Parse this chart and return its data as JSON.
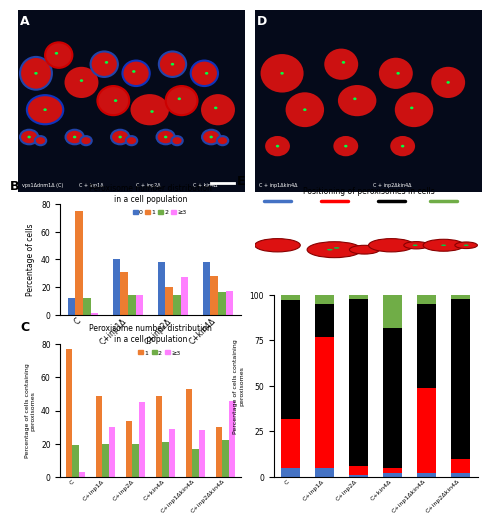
{
  "panel_B": {
    "title": "Peroxisome number distribution\nin a cell population",
    "categories": [
      "C",
      "C+inp1Δ",
      "C+inp2Δ",
      "C+kin4Δ"
    ],
    "legend_labels": [
      "0",
      "1",
      "2",
      "≥3"
    ],
    "colors": [
      "#4472C4",
      "#ED7D31",
      "#70AD47",
      "#FF80FF"
    ],
    "data": {
      "0": [
        12,
        40,
        38,
        38
      ],
      "1": [
        75,
        31,
        20,
        28
      ],
      "2": [
        12,
        14,
        14,
        16
      ],
      "ge3": [
        1,
        14,
        27,
        17
      ]
    },
    "ylabel": "Percentage of cells",
    "ylim": [
      0,
      80
    ],
    "yticks": [
      0,
      20,
      40,
      60,
      80
    ]
  },
  "panel_C": {
    "title": "Peroxisome number distribution\nin a cell population",
    "categories": [
      "C",
      "C+inp1Δ",
      "C+inp2Δ",
      "C+kin4Δ",
      "C+inp1Δkin4Δ",
      "C+inp2Δkin4Δ"
    ],
    "legend_labels": [
      "1",
      "2",
      "≥3"
    ],
    "colors": [
      "#ED7D31",
      "#70AD47",
      "#FF80FF"
    ],
    "data": {
      "1": [
        77,
        49,
        34,
        49,
        53,
        30
      ],
      "2": [
        19,
        20,
        20,
        21,
        17,
        22
      ],
      "ge3": [
        3,
        30,
        45,
        29,
        28,
        46
      ]
    },
    "ylabel": "Percentage of cells containing\nperoxisomes",
    "ylim": [
      0,
      80
    ],
    "yticks": [
      0,
      20,
      40,
      60,
      80
    ]
  },
  "panel_E": {
    "title": "Positioning of peroxisomes in cells",
    "categories": [
      "C",
      "C+inp1Δ",
      "C+inp2Δ",
      "C+kin4Δ",
      "C+inp1Δkin4Δ",
      "C+inp2Δkin4Δ"
    ],
    "colors": [
      "#4472C4",
      "#FF0000",
      "#000000",
      "#70AD47"
    ],
    "data": [
      [
        5,
        5,
        1,
        2,
        2,
        2
      ],
      [
        27,
        72,
        5,
        3,
        47,
        8
      ],
      [
        65,
        18,
        92,
        77,
        46,
        88
      ],
      [
        3,
        5,
        2,
        18,
        5,
        2
      ]
    ],
    "ylabel": "Percentage of cells containing\nperoxisomes",
    "ylim": [
      0,
      100
    ],
    "yticks": [
      0,
      25,
      50,
      75,
      100
    ],
    "legend_line_colors": [
      "#4472C4",
      "#FF0000",
      "#000000",
      "#70AD47"
    ]
  },
  "bg_color": "#FFFFFF"
}
